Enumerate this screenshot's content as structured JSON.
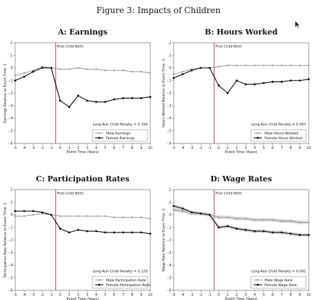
{
  "figure_title": "Figure 3: Impacts of Children",
  "colors": {
    "male": "#888888",
    "female": "#000000",
    "event_line": "#b03060",
    "band": "#d0d0d0"
  },
  "cursor_icon": "arrow-cursor-icon",
  "chart_data": [
    {
      "type": "line",
      "title": "A: Earnings",
      "xlabel": "Event Time (Years)",
      "ylabel": "Earnings Relative to Event Time -1",
      "xlim": [
        -5,
        10
      ],
      "ylim": [
        -0.6,
        0.2
      ],
      "xticks": [
        "-5",
        "-4",
        "-3",
        "-2",
        "-1",
        "0",
        "1",
        "2",
        "3",
        "4",
        "5",
        "6",
        "7",
        "8",
        "9",
        "10"
      ],
      "yticks": [
        "-.6",
        "-.5",
        "-.4",
        "-.3",
        "-.2",
        "-.1",
        "0",
        ".1",
        ".2"
      ],
      "annotation": "First Child Birth",
      "penalty": "Long-Run Child Penalty = 0.194",
      "x": [
        -5,
        -4,
        -3,
        -2,
        -1,
        0,
        1,
        2,
        3,
        4,
        5,
        6,
        7,
        8,
        9,
        10
      ],
      "series": [
        {
          "name": "Male Earnings",
          "values": [
            -0.06,
            -0.04,
            -0.02,
            0.01,
            0,
            -0.01,
            -0.01,
            0,
            -0.01,
            -0.01,
            -0.02,
            -0.02,
            -0.02,
            -0.03,
            -0.03,
            -0.04
          ]
        },
        {
          "name": "Female Earnings",
          "values": [
            -0.1,
            -0.07,
            -0.03,
            0.0,
            0,
            -0.26,
            -0.31,
            -0.22,
            -0.26,
            -0.27,
            -0.27,
            -0.25,
            -0.24,
            -0.24,
            -0.24,
            -0.23
          ]
        }
      ],
      "grid": false,
      "legend": "bottom-right"
    },
    {
      "type": "line",
      "title": "B: Hours Worked",
      "xlabel": "Event Time (Years)",
      "ylabel": "Hours Worked Relative to Event Time -1",
      "xlim": [
        -5,
        10
      ],
      "ylim": [
        -0.6,
        0.2
      ],
      "xticks": [
        "-5",
        "-4",
        "-3",
        "-2",
        "-1",
        "0",
        "1",
        "2",
        "3",
        "4",
        "5",
        "6",
        "7",
        "8",
        "9",
        "10"
      ],
      "yticks": [
        "-.6",
        "-.5",
        "-.4",
        "-.3",
        "-.2",
        "-.1",
        "0",
        ".1",
        ".2"
      ],
      "annotation": "First Child Birth",
      "penalty": "Long-Run Child Penalty = 0.097",
      "x": [
        -5,
        -4,
        -3,
        -2,
        -1,
        0,
        1,
        2,
        3,
        4,
        5,
        6,
        7,
        8,
        9,
        10
      ],
      "series": [
        {
          "name": "Male Hours Worked",
          "values": [
            -0.05,
            -0.03,
            -0.01,
            0.0,
            0,
            0.01,
            0.02,
            0.02,
            0.02,
            0.02,
            0.02,
            0.02,
            0.02,
            0.02,
            0.02,
            0.02
          ]
        },
        {
          "name": "Female Hours Worked",
          "values": [
            -0.08,
            -0.05,
            -0.02,
            0.0,
            0,
            -0.14,
            -0.2,
            -0.1,
            -0.13,
            -0.13,
            -0.12,
            -0.11,
            -0.11,
            -0.1,
            -0.1,
            -0.09
          ]
        }
      ],
      "grid": false,
      "legend": "bottom-right"
    },
    {
      "type": "line",
      "title": "C: Participation Rates",
      "xlabel": "Event Time (Years)",
      "ylabel": "Participation Rate Relative to Event Time -1",
      "xlim": [
        -5,
        10
      ],
      "ylim": [
        -0.6,
        0.2
      ],
      "xticks": [
        "-5",
        "-4",
        "-3",
        "-2",
        "-1",
        "0",
        "1",
        "2",
        "3",
        "4",
        "5",
        "6",
        "7",
        "8",
        "9",
        "10"
      ],
      "yticks": [
        "-.6",
        "-.5",
        "-.4",
        "-.3",
        "-.2",
        "-.1",
        "0",
        ".1",
        ".2"
      ],
      "annotation": "First Child Birth",
      "penalty": "Long-Run Child Penalty = 0.129",
      "x": [
        -5,
        -4,
        -3,
        -2,
        -1,
        0,
        1,
        2,
        3,
        4,
        5,
        6,
        7,
        8,
        9,
        10
      ],
      "series": [
        {
          "name": "Male Participation Rate",
          "values": [
            -0.01,
            -0.01,
            0.0,
            0.01,
            0,
            -0.01,
            -0.01,
            -0.01,
            -0.01,
            -0.01,
            -0.01,
            -0.02,
            -0.02,
            -0.02,
            -0.02,
            -0.03
          ]
        },
        {
          "name": "Female Participation Rate",
          "values": [
            0.03,
            0.03,
            0.03,
            0.02,
            0,
            -0.11,
            -0.14,
            -0.12,
            -0.13,
            -0.13,
            -0.14,
            -0.14,
            -0.14,
            -0.14,
            -0.14,
            -0.15
          ]
        }
      ],
      "grid": false,
      "legend": "bottom-right"
    },
    {
      "type": "line",
      "title": "D: Wage Rates",
      "xlabel": "Event Time (Years)",
      "ylabel": "Wage Rate Relative to Event Time -1",
      "xlim": [
        -5,
        10
      ],
      "ylim": [
        -0.6,
        0.2
      ],
      "xticks": [
        "-5",
        "-4",
        "-3",
        "-2",
        "-1",
        "0",
        "1",
        "2",
        "3",
        "4",
        "5",
        "6",
        "7",
        "8",
        "9",
        "10"
      ],
      "yticks": [
        "-.6",
        "-.5",
        "-.4",
        "-.3",
        "-.2",
        "-.1",
        "0",
        ".1",
        ".2"
      ],
      "annotation": "First Child Birth",
      "penalty": "Long-Run Child Penalty = 0.091",
      "x": [
        -5,
        -4,
        -3,
        -2,
        -1,
        0,
        1,
        2,
        3,
        4,
        5,
        6,
        7,
        8,
        9,
        10
      ],
      "series": [
        {
          "name": "Male Wage Rate",
          "values": [
            0.04,
            0.03,
            0.01,
            0.01,
            0,
            -0.02,
            -0.02,
            -0.03,
            -0.03,
            -0.04,
            -0.04,
            -0.04,
            -0.05,
            -0.05,
            -0.06,
            -0.06
          ]
        },
        {
          "name": "Female Wage Rate",
          "values": [
            0.07,
            0.05,
            0.02,
            0.01,
            0,
            -0.1,
            -0.09,
            -0.11,
            -0.12,
            -0.13,
            -0.13,
            -0.14,
            -0.14,
            -0.15,
            -0.16,
            -0.16
          ]
        }
      ],
      "grid": false,
      "legend": "bottom-right"
    }
  ]
}
